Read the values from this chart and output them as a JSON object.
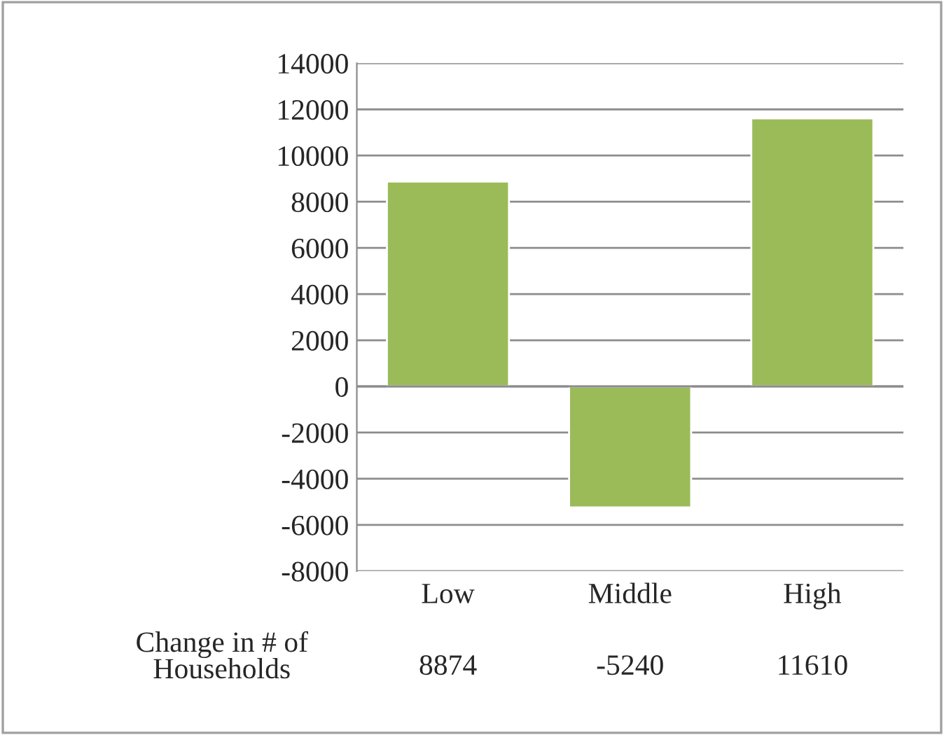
{
  "chart_data": {
    "type": "bar",
    "categories": [
      "Low",
      "Middle",
      "High"
    ],
    "series": [
      {
        "name": "Change in # of Households",
        "color": "#9bbb59",
        "values": [
          8874,
          -5240,
          11610
        ]
      }
    ],
    "ylim": [
      -8000,
      14000
    ],
    "yticks": [
      -8000,
      -6000,
      -4000,
      -2000,
      0,
      2000,
      4000,
      6000,
      8000,
      10000,
      12000,
      14000
    ],
    "grid": "y",
    "data_labels": true,
    "legend": false
  }
}
